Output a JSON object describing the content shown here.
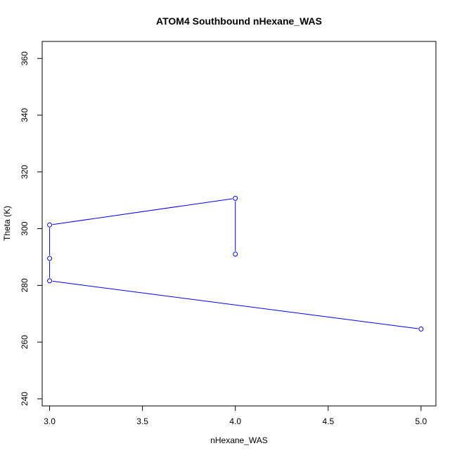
{
  "chart_data": {
    "type": "line",
    "title": "ATOM4 Southbound nHexane_WAS",
    "xlabel": "nHexane_WAS",
    "ylabel": "Theta (K)",
    "xlim": [
      2.96,
      5.08
    ],
    "ylim": [
      237.5,
      366.0
    ],
    "x_ticks": [
      "3.0",
      "3.5",
      "4.0",
      "4.5",
      "5.0"
    ],
    "y_ticks": [
      "240",
      "260",
      "280",
      "300",
      "320",
      "340",
      "360"
    ],
    "grid": false,
    "legend": "none",
    "series": [
      {
        "color": "#0000ff",
        "marker": "open-circle",
        "points": [
          {
            "x": 4.0,
            "y": 291.0
          },
          {
            "x": 4.0,
            "y": 310.7
          },
          {
            "x": 3.0,
            "y": 301.3
          },
          {
            "x": 3.0,
            "y": 289.5
          },
          {
            "x": 3.0,
            "y": 281.6
          },
          {
            "x": 5.0,
            "y": 264.6
          }
        ]
      }
    ]
  }
}
